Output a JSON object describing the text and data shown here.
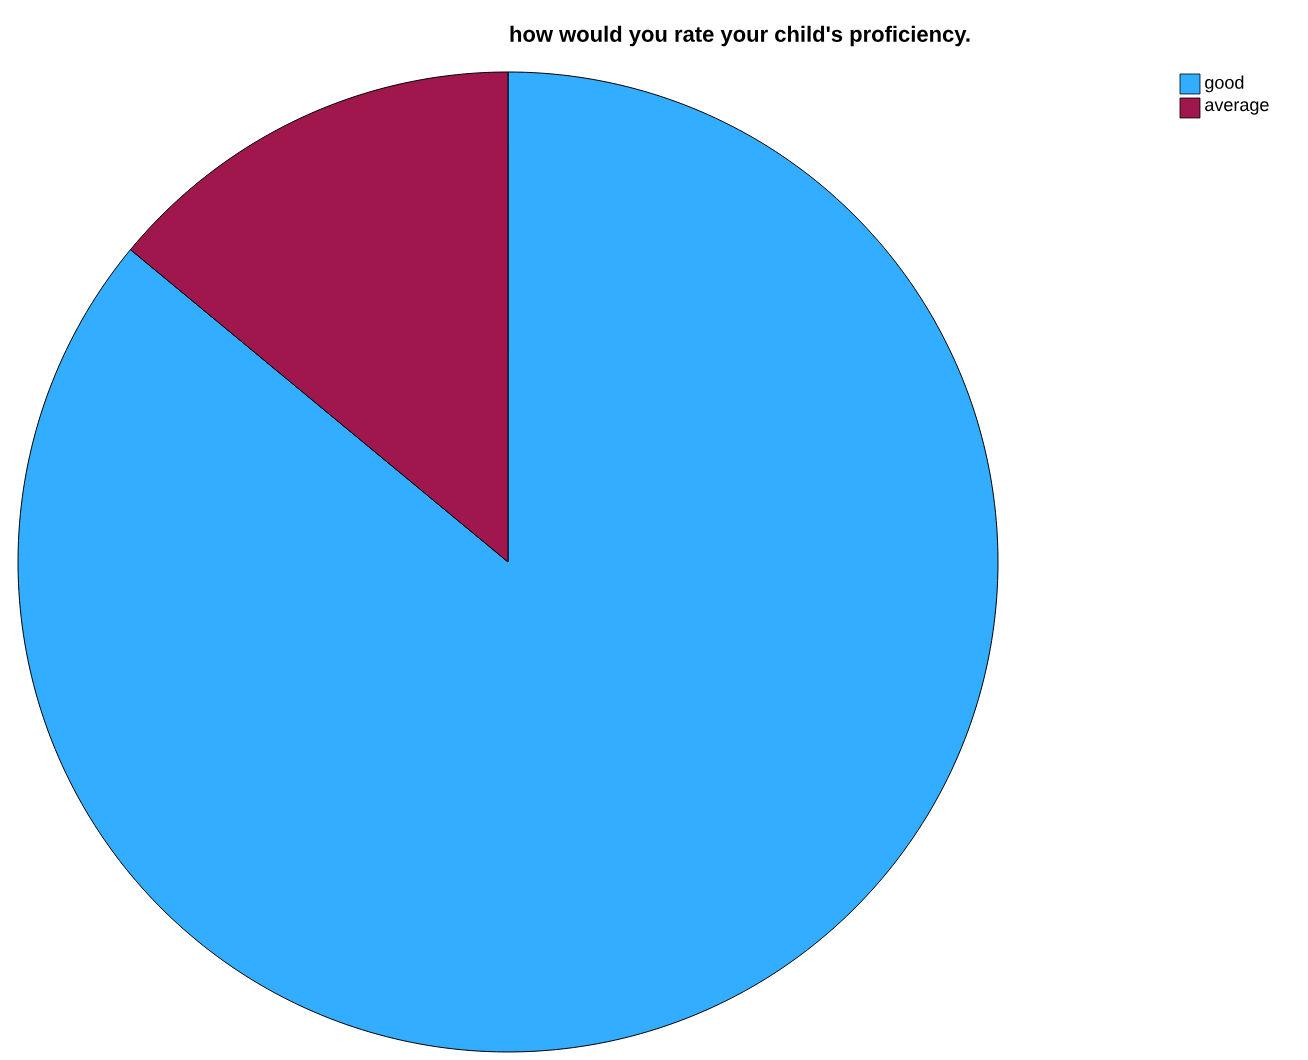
{
  "chart_data": {
    "type": "pie",
    "title": "how would you rate your child's proficiency.",
    "categories": [
      "good",
      "average"
    ],
    "values": [
      86,
      14
    ],
    "colors": [
      "#33adff",
      "#a0174d"
    ],
    "legend": "top right"
  }
}
